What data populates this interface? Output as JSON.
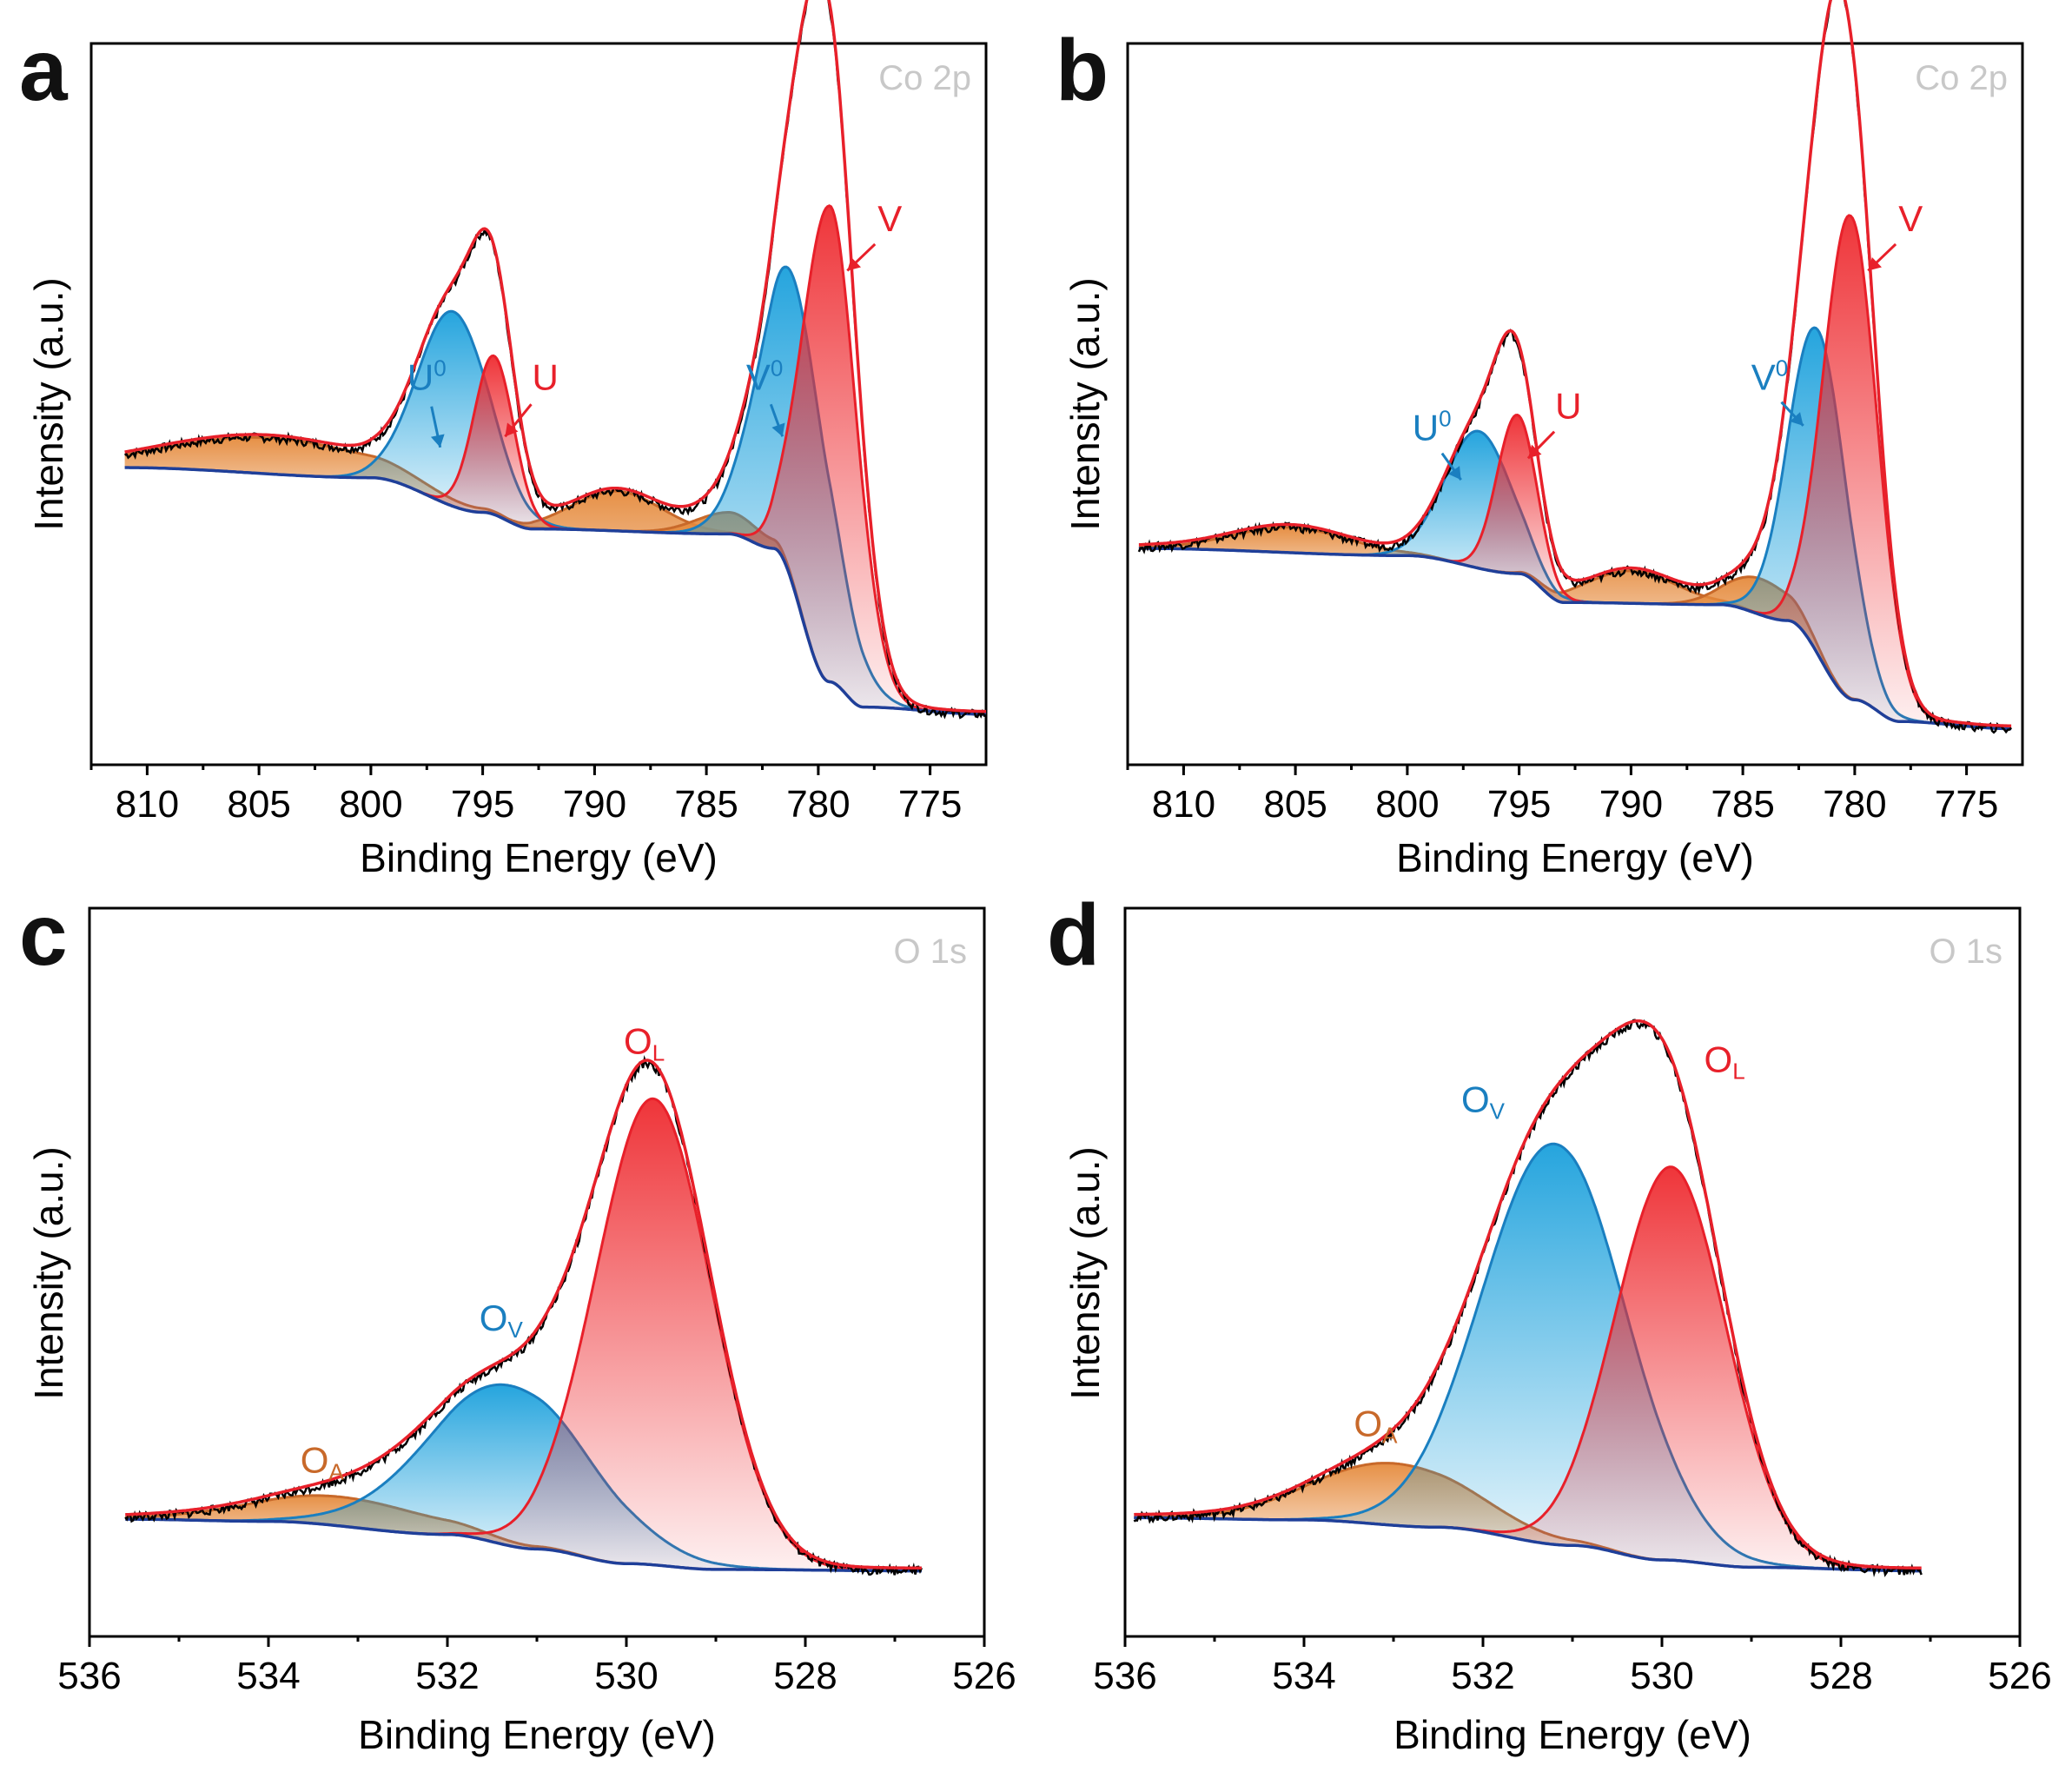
{
  "figure": {
    "colors": {
      "raw": "#000000",
      "envelope": "#e8202a",
      "baseline": "#1f3f99",
      "blue": "#1a8fd0",
      "red": "#e8202a",
      "orange": "#e07a2c",
      "tag": "#c8c8c8"
    }
  },
  "chart_data": [
    {
      "panel": "a",
      "tag": "Co 2p",
      "type": "line",
      "xlabel": "Binding Energy (eV)",
      "ylabel": "Intensity (a.u.)",
      "xlim": [
        812.5,
        772.5
      ],
      "ylim": [
        0,
        1
      ],
      "xticks": [
        810,
        805,
        800,
        795,
        790,
        785,
        780,
        775
      ],
      "xtick_labels": [
        "810",
        "805",
        "800",
        "795",
        "790",
        "785",
        "780",
        "775"
      ],
      "x_range": [
        811,
        772.5
      ],
      "baseline": [
        [
          811,
          0.412
        ],
        [
          800,
          0.398
        ],
        [
          795,
          0.35
        ],
        [
          792.8,
          0.327
        ],
        [
          784,
          0.32
        ],
        [
          782,
          0.3
        ],
        [
          779.5,
          0.115
        ],
        [
          778,
          0.08
        ],
        [
          772.5,
          0.07
        ]
      ],
      "components": [
        {
          "name": "U0",
          "label": "U",
          "sup": "0",
          "color": "blue",
          "center": 796.3,
          "amp": 0.27,
          "width": 1.6,
          "label_pos": [
            797.5,
            0.52
          ],
          "arrow_to": [
            796.9,
            0.44
          ]
        },
        {
          "name": "U",
          "label": "U",
          "sup": "",
          "color": "red",
          "center": 794.5,
          "amp": 0.22,
          "width": 0.9,
          "label_pos": [
            792.2,
            0.52
          ],
          "arrow_to": [
            794.0,
            0.455
          ]
        },
        {
          "name": "V0",
          "label": "V",
          "sup": "0",
          "color": "blue",
          "center": 781.0,
          "amp": 0.43,
          "width": 1.6,
          "label_pos": [
            782.4,
            0.52
          ],
          "arrow_to": [
            781.6,
            0.455
          ]
        },
        {
          "name": "V",
          "label": "V",
          "sup": "",
          "color": "red",
          "center": 779.5,
          "amp": 0.66,
          "width": 1.2,
          "label_pos": [
            776.8,
            0.74
          ],
          "arrow_to": [
            778.7,
            0.685
          ]
        },
        {
          "name": "sat1",
          "color": "orange",
          "center": 804.5,
          "amp": 0.05,
          "width": 4.5
        },
        {
          "name": "sat2",
          "color": "orange",
          "center": 789.0,
          "amp": 0.055,
          "width": 2.0
        },
        {
          "name": "sat3",
          "color": "orange",
          "center": 784.0,
          "amp": 0.03,
          "width": 1.5
        }
      ]
    },
    {
      "panel": "b",
      "tag": "Co 2p",
      "type": "line",
      "xlabel": "Binding Energy (eV)",
      "ylabel": "Intensity (a.u.)",
      "xlim": [
        812.5,
        772.5
      ],
      "ylim": [
        0,
        1
      ],
      "xticks": [
        810,
        805,
        800,
        795,
        790,
        785,
        780,
        775
      ],
      "xtick_labels": [
        "810",
        "805",
        "800",
        "795",
        "790",
        "785",
        "780",
        "775"
      ],
      "x_range": [
        812,
        773
      ],
      "baseline": [
        [
          812,
          0.3
        ],
        [
          800,
          0.29
        ],
        [
          795,
          0.265
        ],
        [
          793,
          0.225
        ],
        [
          786,
          0.222
        ],
        [
          783,
          0.2
        ],
        [
          780,
          0.09
        ],
        [
          778,
          0.06
        ],
        [
          773,
          0.05
        ]
      ],
      "components": [
        {
          "name": "U0",
          "label": "U",
          "sup": "0",
          "color": "blue",
          "center": 796.8,
          "amp": 0.19,
          "width": 1.5,
          "label_pos": [
            798.9,
            0.45
          ],
          "arrow_to": [
            797.6,
            0.395
          ]
        },
        {
          "name": "U",
          "label": "U",
          "sup": "",
          "color": "red",
          "center": 795.1,
          "amp": 0.22,
          "width": 0.9,
          "label_pos": [
            792.8,
            0.48
          ],
          "arrow_to": [
            794.6,
            0.425
          ]
        },
        {
          "name": "V0",
          "label": "V",
          "sup": "0",
          "color": "blue",
          "center": 781.6,
          "amp": 0.45,
          "width": 1.3,
          "label_pos": [
            783.8,
            0.52
          ],
          "arrow_to": [
            782.3,
            0.47
          ]
        },
        {
          "name": "V",
          "label": "V",
          "sup": "",
          "color": "red",
          "center": 780.2,
          "amp": 0.67,
          "width": 1.2,
          "label_pos": [
            777.5,
            0.74
          ],
          "arrow_to": [
            779.4,
            0.685
          ]
        },
        {
          "name": "sat1",
          "color": "orange",
          "center": 805.2,
          "amp": 0.035,
          "width": 2.6
        },
        {
          "name": "sat2",
          "color": "orange",
          "center": 790.0,
          "amp": 0.045,
          "width": 2.0
        },
        {
          "name": "sat3",
          "color": "orange",
          "center": 784.2,
          "amp": 0.05,
          "width": 1.5
        }
      ]
    },
    {
      "panel": "c",
      "tag": "O 1s",
      "type": "line",
      "xlabel": "Binding Energy (eV)",
      "ylabel": "Intensity (a.u.)",
      "xlim": [
        536,
        526
      ],
      "ylim": [
        0,
        1
      ],
      "xticks": [
        536,
        534,
        532,
        530,
        528,
        526
      ],
      "xtick_labels": [
        "536",
        "534",
        "532",
        "530",
        "528",
        "526"
      ],
      "x_range": [
        535.6,
        526.7
      ],
      "baseline": [
        [
          535.6,
          0.161
        ],
        [
          534,
          0.158
        ],
        [
          532,
          0.14
        ],
        [
          531,
          0.12
        ],
        [
          530,
          0.1
        ],
        [
          529,
          0.092
        ],
        [
          526.7,
          0.09
        ]
      ],
      "components": [
        {
          "name": "OA",
          "label": "O",
          "sub": "A",
          "color": "orange",
          "center": 533.2,
          "amp": 0.04,
          "width": 1.0,
          "label_pos": [
            533.4,
            0.225
          ]
        },
        {
          "name": "Ov",
          "label": "O",
          "sub": "V",
          "color": "blue",
          "center": 531.3,
          "amp": 0.22,
          "width": 0.9,
          "label_pos": [
            531.4,
            0.42
          ]
        },
        {
          "name": "OL",
          "label": "O",
          "sub": "L",
          "color": "red",
          "center": 529.7,
          "amp": 0.64,
          "width": 0.65,
          "label_pos": [
            529.8,
            0.8
          ]
        }
      ]
    },
    {
      "panel": "d",
      "tag": "O 1s",
      "type": "line",
      "xlabel": "Binding Energy (eV)",
      "ylabel": "Intensity (a.u.)",
      "xlim": [
        536,
        526
      ],
      "ylim": [
        0,
        1
      ],
      "xticks": [
        536,
        534,
        532,
        530,
        528,
        526
      ],
      "xtick_labels": [
        "536",
        "534",
        "532",
        "530",
        "528",
        "526"
      ],
      "x_range": [
        535.9,
        527.1
      ],
      "baseline": [
        [
          535.9,
          0.163
        ],
        [
          534,
          0.16
        ],
        [
          532.5,
          0.15
        ],
        [
          531,
          0.125
        ],
        [
          530,
          0.105
        ],
        [
          529,
          0.095
        ],
        [
          527.1,
          0.09
        ]
      ],
      "components": [
        {
          "name": "OA",
          "label": "O",
          "sub": "A",
          "color": "orange",
          "center": 533.0,
          "amp": 0.085,
          "width": 0.9,
          "label_pos": [
            533.2,
            0.275
          ]
        },
        {
          "name": "Ov",
          "label": "O",
          "sub": "V",
          "color": "blue",
          "center": 531.2,
          "amp": 0.55,
          "width": 0.8,
          "label_pos": [
            532.0,
            0.72
          ]
        },
        {
          "name": "OL",
          "label": "O",
          "sub": "L",
          "color": "red",
          "center": 529.9,
          "amp": 0.54,
          "width": 0.62,
          "label_pos": [
            529.3,
            0.775
          ]
        }
      ]
    }
  ]
}
